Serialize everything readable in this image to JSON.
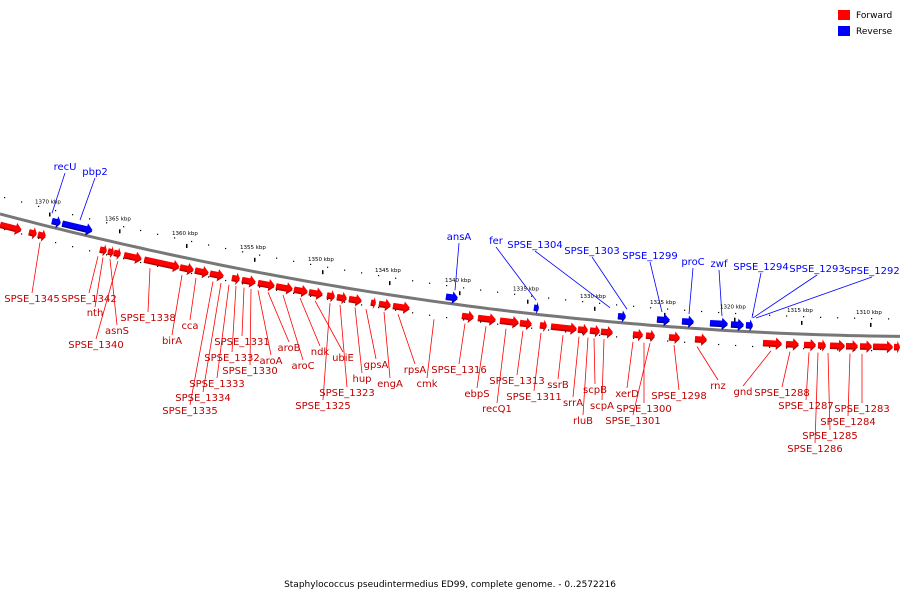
{
  "caption": "Staphylococcus pseudintermedius ED99, complete genome. - 0..2572216",
  "legend": [
    {
      "label": "Forward",
      "color": "#ff0000"
    },
    {
      "label": "Reverse",
      "color": "#0000ff"
    }
  ],
  "colors": {
    "forward": "#ff0000",
    "reverse": "#0000ff",
    "backbone": "#777777"
  },
  "kbp_ticks": [
    "1370 kbp",
    "1365 kbp",
    "1360 kbp",
    "1355 kbp",
    "1350 kbp",
    "1345 kbp",
    "1340 kbp",
    "1335 kbp",
    "1330 kbp",
    "1325 kbp",
    "1320 kbp",
    "1315 kbp",
    "1310 kbp"
  ],
  "reverse_labels": [
    "recU",
    "pbp2",
    "ansA",
    "fer",
    "SPSE_1304",
    "SPSE_1303",
    "SPSE_1299",
    "proC",
    "zwf",
    "SPSE_1294",
    "SPSE_1293",
    "SPSE_1292"
  ],
  "forward_labels": [
    "SPSE_1345",
    "SPSE_1342",
    "nth",
    "asnS",
    "SPSE_1340",
    "SPSE_1338",
    "birA",
    "cca",
    "SPSE_1335",
    "SPSE_1334",
    "SPSE_1333",
    "SPSE_1332",
    "SPSE_1331",
    "SPSE_1330",
    "aroA",
    "aroB",
    "aroC",
    "ndk",
    "ubiE",
    "SPSE_1325",
    "SPSE_1323",
    "hup",
    "gpsA",
    "engA",
    "rpsA",
    "cmk",
    "SPSE_1316",
    "ebpS",
    "recQ1",
    "SPSE_1313",
    "SPSE_1311",
    "ssrB",
    "srrA",
    "rluB",
    "scpB",
    "scpA",
    "xerD",
    "SPSE_1300",
    "SPSE_1301",
    "SPSE_1298",
    "rnz",
    "gnd",
    "SPSE_1288",
    "SPSE_1287",
    "SPSE_1286",
    "SPSE_1285",
    "SPSE_1284",
    "SPSE_1283"
  ]
}
